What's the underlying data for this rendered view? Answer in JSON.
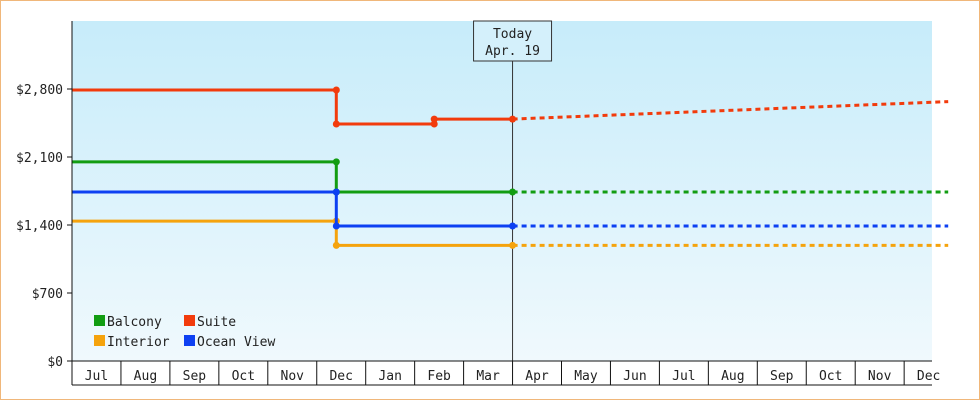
{
  "chart_data": {
    "type": "line",
    "title": "",
    "xlabel": "",
    "ylabel": "",
    "ylim": [
      0,
      3500
    ],
    "yticks": [
      0,
      700,
      1400,
      2100,
      2800
    ],
    "ytick_labels": [
      "$0",
      "$700",
      "$1,400",
      "$2,100",
      "$2,800"
    ],
    "x_months": [
      "Jul",
      "Aug",
      "Sep",
      "Oct",
      "Nov",
      "Dec",
      "Jan",
      "Feb",
      "Mar",
      "Apr",
      "May",
      "Jun",
      "Jul",
      "Aug",
      "Sep",
      "Oct",
      "Nov",
      "Dec"
    ],
    "today": {
      "title": "Today",
      "date_label": "Apr. 19",
      "month_index": 9.0
    },
    "line_style": "step",
    "grid": false,
    "legend_position": "bottom-left",
    "series": [
      {
        "name": "Balcony",
        "color": "#129d12",
        "points": [
          [
            0,
            2050
          ],
          [
            5.4,
            2050
          ],
          [
            5.4,
            1740
          ],
          [
            9.0,
            1740
          ]
        ],
        "projection": [
          [
            9.0,
            1740
          ],
          [
            17.9,
            1740
          ]
        ]
      },
      {
        "name": "Suite",
        "color": "#f23b0c",
        "points": [
          [
            0,
            2790
          ],
          [
            5.4,
            2790
          ],
          [
            5.4,
            2440
          ],
          [
            7.4,
            2440
          ],
          [
            7.4,
            2490
          ],
          [
            9.0,
            2490
          ]
        ],
        "projection": [
          [
            9.0,
            2490
          ],
          [
            17.9,
            2670
          ]
        ]
      },
      {
        "name": "Interior",
        "color": "#f5a30d",
        "points": [
          [
            0,
            1440
          ],
          [
            5.4,
            1440
          ],
          [
            5.4,
            1190
          ],
          [
            9.0,
            1190
          ]
        ],
        "projection": [
          [
            9.0,
            1190
          ],
          [
            17.9,
            1190
          ]
        ]
      },
      {
        "name": "Ocean View",
        "color": "#0d40f2",
        "points": [
          [
            0,
            1740
          ],
          [
            5.4,
            1740
          ],
          [
            5.4,
            1390
          ],
          [
            9.0,
            1390
          ]
        ],
        "projection": [
          [
            9.0,
            1390
          ],
          [
            17.9,
            1390
          ]
        ]
      }
    ]
  }
}
